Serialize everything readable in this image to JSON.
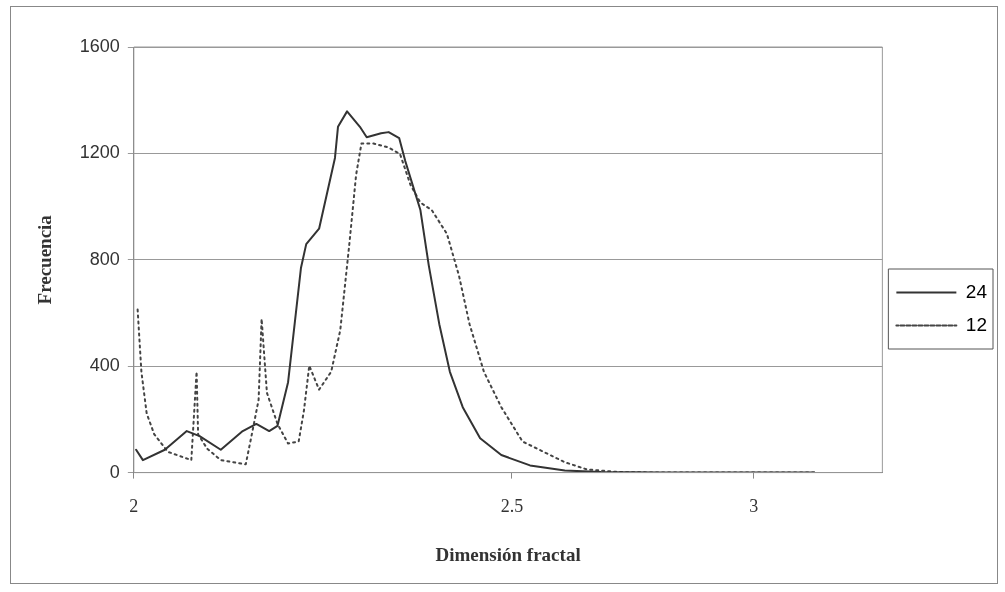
{
  "chart_data": {
    "type": "line",
    "xlabel": "Dimensión fractal",
    "ylabel": "Frecuencia",
    "xlim": [
      2,
      2.99
    ],
    "xticks": [
      2,
      2.5,
      {
        "value": 2.82,
        "label": "3"
      }
    ],
    "ylim": [
      0,
      1600
    ],
    "yticks": [
      0,
      400,
      800,
      1200,
      1600
    ],
    "grid": "y",
    "legend": "right",
    "marker": "none",
    "series": [
      {
        "name": "24",
        "color": "#333333",
        "line_style": "solid",
        "x": [
          2.003,
          2.012,
          2.041,
          2.07,
          2.087,
          2.115,
          2.144,
          2.162,
          2.179,
          2.19,
          2.204,
          2.221,
          2.228,
          2.245,
          2.266,
          2.27,
          2.282,
          2.299,
          2.308,
          2.327,
          2.337,
          2.351,
          2.359,
          2.379,
          2.39,
          2.404,
          2.418,
          2.435,
          2.458,
          2.486,
          2.524,
          2.57,
          2.618,
          2.7,
          2.9
        ],
        "values": [
          86,
          47,
          86,
          156,
          137,
          86,
          156,
          183,
          156,
          176,
          340,
          769,
          859,
          917,
          1183,
          1300,
          1358,
          1300,
          1261,
          1276,
          1280,
          1257,
          1171,
          987,
          780,
          558,
          379,
          246,
          129,
          66,
          27,
          8,
          2,
          0,
          0
        ]
      },
      {
        "name": "12",
        "color": "#444444",
        "line_style": "dotted",
        "x": [
          2.005,
          2.01,
          2.017,
          2.027,
          2.045,
          2.076,
          2.083,
          2.085,
          2.097,
          2.115,
          2.148,
          2.155,
          2.165,
          2.169,
          2.176,
          2.19,
          2.204,
          2.218,
          2.225,
          2.232,
          2.245,
          2.261,
          2.273,
          2.285,
          2.294,
          2.301,
          2.317,
          2.337,
          2.352,
          2.366,
          2.379,
          2.394,
          2.414,
          2.43,
          2.444,
          2.463,
          2.486,
          2.514,
          2.542,
          2.57,
          2.599,
          2.641,
          2.7,
          2.9
        ],
        "values": [
          613,
          379,
          222,
          144,
          78,
          47,
          379,
          144,
          90,
          47,
          31,
          129,
          273,
          578,
          300,
          183,
          109,
          117,
          234,
          402,
          312,
          379,
          535,
          859,
          1120,
          1237,
          1237,
          1222,
          1198,
          1081,
          1015,
          987,
          898,
          741,
          558,
          379,
          246,
          117,
          78,
          39,
          12,
          2,
          0,
          0
        ]
      }
    ]
  }
}
